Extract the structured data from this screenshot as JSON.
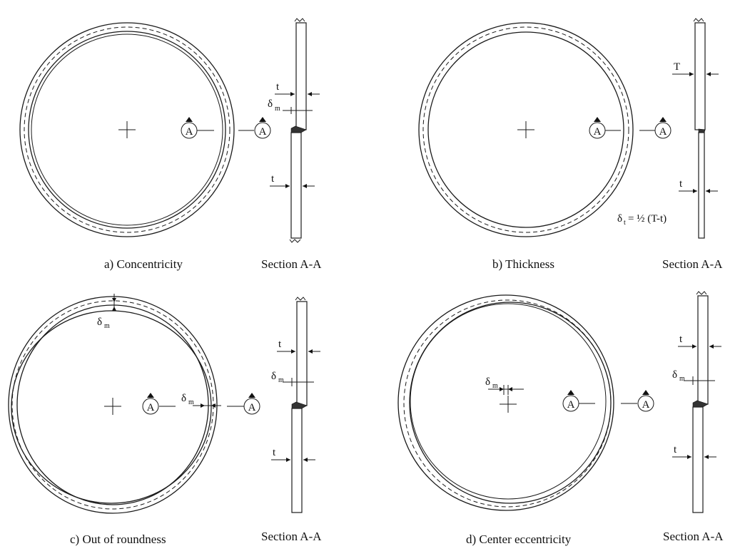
{
  "panels": [
    {
      "id": "a",
      "caption": "a) Concentricity",
      "section_caption": "Section A-A",
      "section_marker": "A",
      "upper_wall_label": "t",
      "lower_wall_label": "t",
      "misalignment_label": "δ",
      "misalignment_subscript": "m"
    },
    {
      "id": "b",
      "caption": "b) Thickness",
      "section_caption": "Section A-A",
      "section_marker": "A",
      "upper_wall_label": "T",
      "lower_wall_label": "t",
      "formula_symbol": "δ",
      "formula_subscript": "t",
      "formula_rest": "= ½ (T-t)"
    },
    {
      "id": "c",
      "caption": "c) Out of roundness",
      "section_caption": "Section A-A",
      "section_marker": "A",
      "upper_wall_label": "t",
      "lower_wall_label": "t",
      "misalignment_label": "δ",
      "misalignment_subscript": "m"
    },
    {
      "id": "d",
      "caption": "d) Center eccentricity",
      "section_caption": "Section A-A",
      "section_marker": "A",
      "upper_wall_label": "t",
      "lower_wall_label": "t",
      "misalignment_label": "δ",
      "misalignment_subscript": "m"
    }
  ]
}
